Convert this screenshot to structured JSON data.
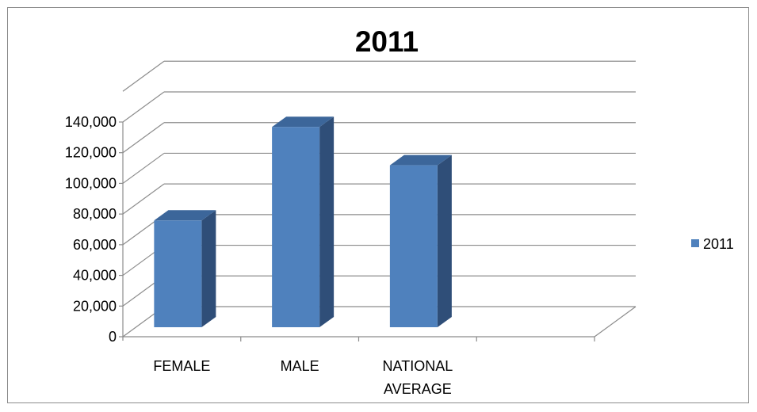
{
  "chart_data": {
    "type": "bar",
    "title": "2011",
    "categories": [
      "FEMALE",
      "MALE",
      "NATIONAL AVERAGE",
      ""
    ],
    "series": [
      {
        "name": "2011",
        "values": [
          67000,
          128000,
          103000,
          null
        ],
        "color": "#4F81BD"
      }
    ],
    "ylim": [
      0,
      140000
    ],
    "yticks": [
      "0",
      "20,000",
      "40,000",
      "60,000",
      "80,000",
      "100,000",
      "120,000",
      "140,000"
    ],
    "grid": true,
    "legend": "right",
    "style": "3d-column"
  }
}
